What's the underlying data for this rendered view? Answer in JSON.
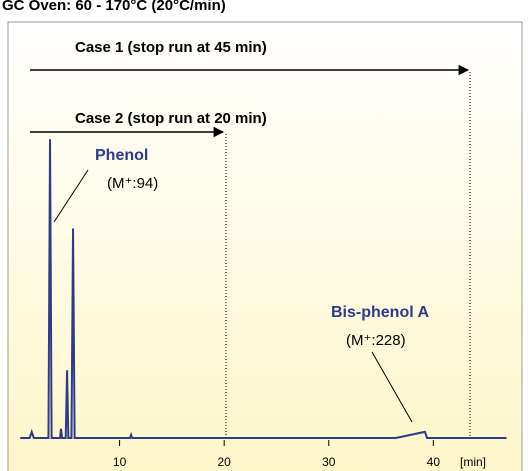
{
  "chart_data": {
    "type": "line",
    "title": "GC Oven: 60 - 170°C (20°C/min)",
    "annotations": [
      "Case 1 (stop run at 45 min)",
      "Case 2  (stop run at 20 min)",
      "Phenol",
      "(M⁺:94)",
      "Bis-phenol A",
      "(M⁺:228)"
    ],
    "x_label": "[min]",
    "x": [
      0.5,
      1.4,
      1.6,
      1.8,
      3.2,
      3.35,
      3.5,
      4.3,
      4.4,
      4.5,
      4.85,
      4.98,
      5.1,
      5.4,
      5.55,
      5.7,
      11,
      11.1,
      11.2,
      36.4,
      39.2,
      39.4,
      47
    ],
    "series": [
      {
        "color": "#2e3a8c",
        "values": [
          0,
          0,
          2,
          0,
          0,
          97,
          0,
          0,
          3,
          0,
          0,
          22,
          0,
          0,
          68,
          0,
          0,
          1,
          0,
          0,
          2,
          0,
          0
        ]
      }
    ],
    "xlim": [
      0,
      48
    ],
    "xticks": [
      10,
      20,
      30,
      40
    ],
    "ylim": [
      0,
      100
    ]
  }
}
